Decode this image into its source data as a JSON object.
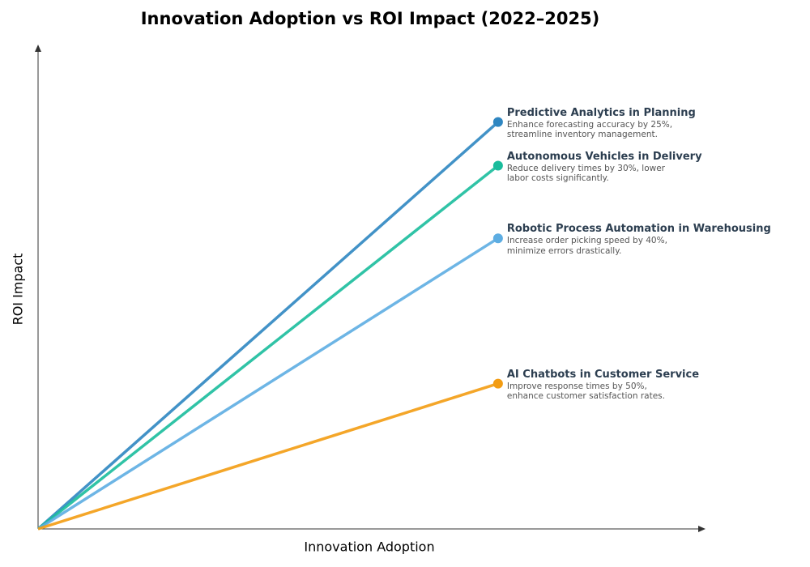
{
  "chart_data": {
    "type": "line",
    "title": "Innovation Adoption vs ROI Impact (2022–2025)",
    "x_label": "Innovation Adoption",
    "y_label": "ROI Impact",
    "xlim": [
      0,
      1
    ],
    "ylim": [
      0,
      1
    ],
    "series": [
      {
        "name": "Predictive Analytics in Planning",
        "description": "Enhance forecasting accuracy by 25%, streamline inventory management.",
        "color": "#2e86c1",
        "x": [
          0,
          0.69
        ],
        "values": [
          0,
          0.84
        ]
      },
      {
        "name": "Autonomous Vehicles in Delivery",
        "description": "Reduce delivery times by 30%, lower labor costs significantly.",
        "color": "#1abc9c",
        "x": [
          0,
          0.69
        ],
        "values": [
          0,
          0.75
        ]
      },
      {
        "name": "Robotic Process Automation in Warehousing",
        "description": "Increase order picking speed by 40%, minimize errors drastically.",
        "color": "#5dade2",
        "x": [
          0,
          0.69
        ],
        "values": [
          0,
          0.6
        ]
      },
      {
        "name": "AI Chatbots in Customer Service",
        "description": "Improve response times by 50%, enhance customer satisfaction rates.",
        "color": "#f39c12",
        "x": [
          0,
          0.69
        ],
        "values": [
          0,
          0.3
        ]
      }
    ]
  }
}
